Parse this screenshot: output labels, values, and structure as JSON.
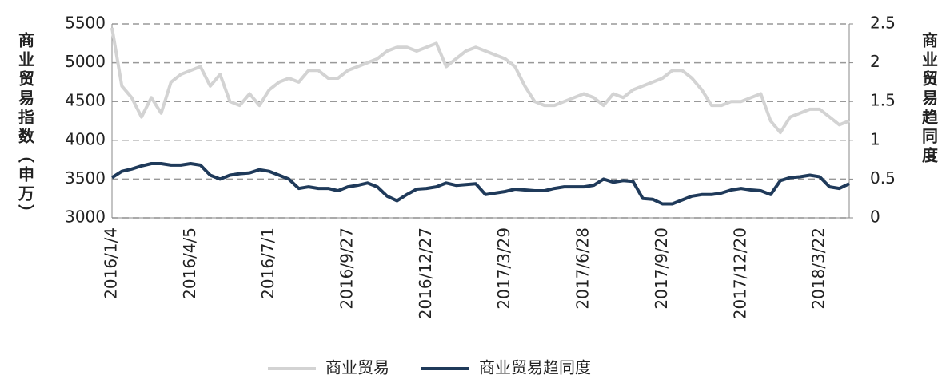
{
  "chart_data": {
    "type": "line",
    "y_label": "商业贸易指数（申万）",
    "y2_label": "商业贸易趋同度",
    "categories": [
      "2016/1/4",
      null,
      null,
      null,
      null,
      null,
      null,
      null,
      "2016/4/5",
      null,
      null,
      null,
      null,
      null,
      null,
      null,
      "2016/7/1",
      null,
      null,
      null,
      null,
      null,
      null,
      null,
      "2016/9/27",
      null,
      null,
      null,
      null,
      null,
      null,
      null,
      "2016/12/27",
      null,
      null,
      null,
      null,
      null,
      null,
      null,
      "2017/3/29",
      null,
      null,
      null,
      null,
      null,
      null,
      null,
      "2017/6/28",
      null,
      null,
      null,
      null,
      null,
      null,
      null,
      "2017/9/20",
      null,
      null,
      null,
      null,
      null,
      null,
      null,
      "2017/12/20",
      null,
      null,
      null,
      null,
      null,
      null,
      null,
      "2018/3/22",
      null,
      null,
      null
    ],
    "series": [
      {
        "name": "商业贸易",
        "color": "#d3d3d3",
        "axis": "y",
        "values": [
          5450,
          4700,
          4550,
          4300,
          4550,
          4350,
          4750,
          4850,
          4900,
          4950,
          4700,
          4850,
          4500,
          4450,
          4600,
          4450,
          4650,
          4750,
          4800,
          4750,
          4900,
          4900,
          4800,
          4800,
          4900,
          4950,
          5000,
          5050,
          5150,
          5200,
          5200,
          5150,
          5200,
          5250,
          4950,
          5050,
          5150,
          5200,
          5150,
          5100,
          5050,
          4950,
          4700,
          4500,
          4450,
          4450,
          4500,
          4550,
          4600,
          4550,
          4450,
          4600,
          4550,
          4650,
          4700,
          4750,
          4800,
          4900,
          4900,
          4800,
          4650,
          4450,
          4450,
          4500,
          4500,
          4550,
          4600,
          4250,
          4100,
          4300,
          4350,
          4400,
          4400,
          4300,
          4200,
          4250
        ]
      },
      {
        "name": "商业贸易趋同度",
        "color": "#1f3a5a",
        "axis": "y2",
        "values": [
          0.52,
          0.6,
          0.63,
          0.67,
          0.7,
          0.7,
          0.68,
          0.68,
          0.7,
          0.68,
          0.55,
          0.5,
          0.55,
          0.57,
          0.58,
          0.62,
          0.6,
          0.55,
          0.5,
          0.38,
          0.4,
          0.38,
          0.38,
          0.35,
          0.4,
          0.42,
          0.45,
          0.4,
          0.28,
          0.22,
          0.3,
          0.37,
          0.38,
          0.4,
          0.45,
          0.42,
          0.43,
          0.44,
          0.3,
          0.32,
          0.34,
          0.37,
          0.36,
          0.35,
          0.35,
          0.38,
          0.4,
          0.4,
          0.4,
          0.42,
          0.5,
          0.46,
          0.48,
          0.47,
          0.25,
          0.24,
          0.18,
          0.18,
          0.23,
          0.28,
          0.3,
          0.3,
          0.32,
          0.36,
          0.38,
          0.36,
          0.35,
          0.3,
          0.48,
          0.52,
          0.53,
          0.55,
          0.53,
          0.4,
          0.38,
          0.44
        ]
      }
    ],
    "ylim": [
      3000,
      5500
    ],
    "yticks": [
      3000,
      3500,
      4000,
      4500,
      5000,
      5500
    ],
    "y2lim": [
      0,
      2.5
    ],
    "y2ticks": [
      0,
      0.5,
      1,
      1.5,
      2,
      2.5
    ],
    "grid": true,
    "legend": "bottom"
  }
}
